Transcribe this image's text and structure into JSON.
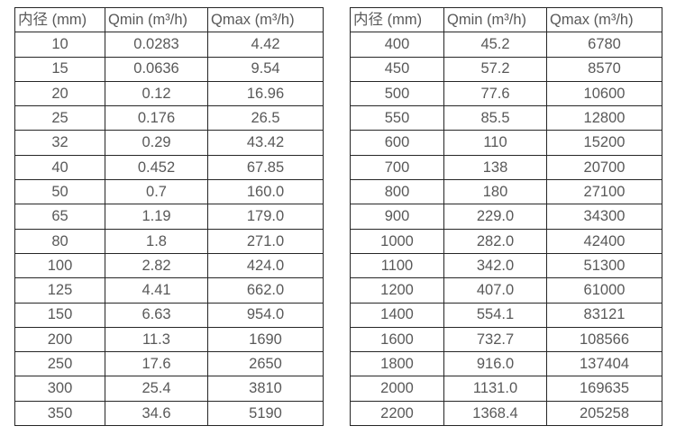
{
  "colors": {
    "background": "#ffffff",
    "border": "#262626",
    "text": "#595959"
  },
  "tables": [
    {
      "headers": [
        "内径 (mm)",
        "Qmin (m³/h)",
        "Qmax (m³/h)"
      ],
      "rows": [
        [
          "10",
          "0.0283",
          "4.42"
        ],
        [
          "15",
          "0.0636",
          "9.54"
        ],
        [
          "20",
          "0.12",
          "16.96"
        ],
        [
          "25",
          "0.176",
          "26.5"
        ],
        [
          "32",
          "0.29",
          "43.42"
        ],
        [
          "40",
          "0.452",
          "67.85"
        ],
        [
          "50",
          "0.7",
          "160.0"
        ],
        [
          "65",
          "1.19",
          "179.0"
        ],
        [
          "80",
          "1.8",
          "271.0"
        ],
        [
          "100",
          "2.82",
          "424.0"
        ],
        [
          "125",
          "4.41",
          "662.0"
        ],
        [
          "150",
          "6.63",
          "954.0"
        ],
        [
          "200",
          "11.3",
          "1690"
        ],
        [
          "250",
          "17.6",
          "2650"
        ],
        [
          "300",
          "25.4",
          "3810"
        ],
        [
          "350",
          "34.6",
          "5190"
        ]
      ]
    },
    {
      "headers": [
        "内径 (mm)",
        "Qmin (m³/h)",
        "Qmax (m³/h)"
      ],
      "rows": [
        [
          "400",
          "45.2",
          "6780"
        ],
        [
          "450",
          "57.2",
          "8570"
        ],
        [
          "500",
          "77.6",
          "10600"
        ],
        [
          "550",
          "85.5",
          "12800"
        ],
        [
          "600",
          "110",
          "15200"
        ],
        [
          "700",
          "138",
          "20700"
        ],
        [
          "800",
          "180",
          "27100"
        ],
        [
          "900",
          "229.0",
          "34300"
        ],
        [
          "1000",
          "282.0",
          "42400"
        ],
        [
          "1100",
          "342.0",
          "51300"
        ],
        [
          "1200",
          "407.0",
          "61000"
        ],
        [
          "1400",
          "554.1",
          "83121"
        ],
        [
          "1600",
          "732.7",
          "108566"
        ],
        [
          "1800",
          "916.0",
          "137404"
        ],
        [
          "2000",
          "1131.0",
          "169635"
        ],
        [
          "2200",
          "1368.4",
          "205258"
        ]
      ]
    }
  ]
}
